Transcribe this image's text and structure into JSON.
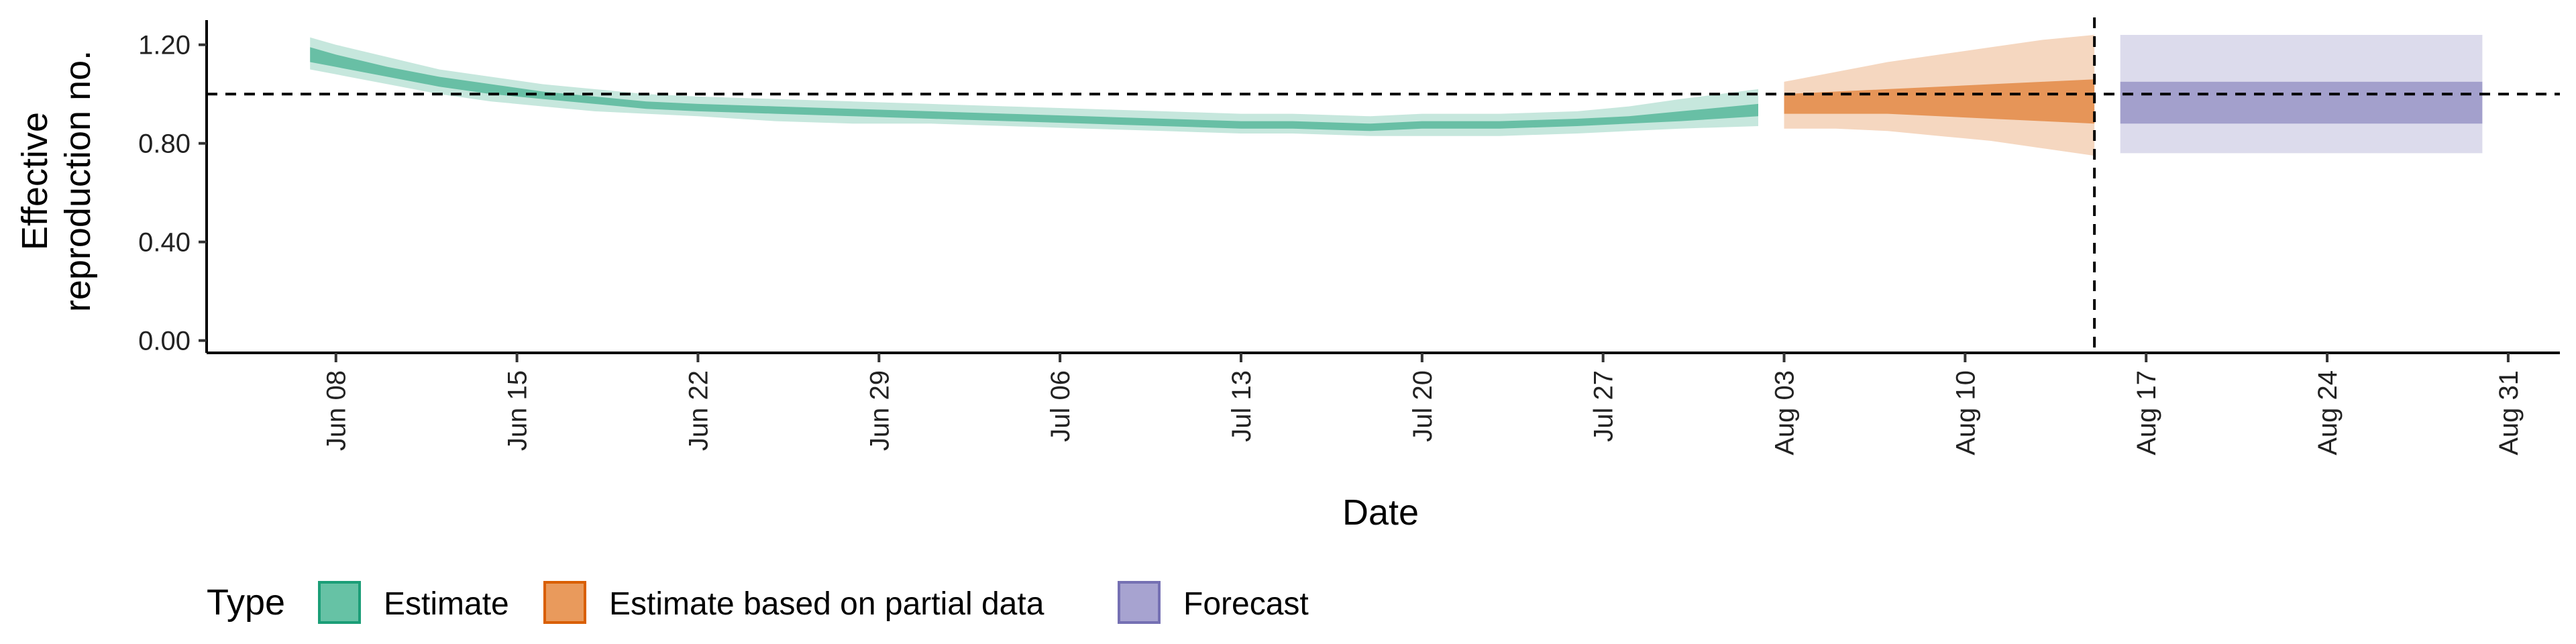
{
  "chart_data": {
    "type": "area",
    "xlabel": "Date",
    "ylabel_lines": [
      "Effective",
      "reproduction no."
    ],
    "x_domain": [
      "2020-06-03",
      "2020-09-02"
    ],
    "ylim": [
      -0.05,
      1.3
    ],
    "y_ticks": [
      0.0,
      0.4,
      0.8,
      1.2
    ],
    "y_tick_labels": [
      "0.00",
      "0.40",
      "0.80",
      "1.20"
    ],
    "x_ticks": [
      "2020-06-08",
      "2020-06-15",
      "2020-06-22",
      "2020-06-29",
      "2020-07-06",
      "2020-07-13",
      "2020-07-20",
      "2020-07-27",
      "2020-08-03",
      "2020-08-10",
      "2020-08-17",
      "2020-08-24",
      "2020-08-31"
    ],
    "x_tick_labels": [
      "Jun 08",
      "Jun 15",
      "Jun 22",
      "Jun 29",
      "Jul 06",
      "Jul 13",
      "Jul 20",
      "Jul 27",
      "Aug 03",
      "Aug 10",
      "Aug 17",
      "Aug 24",
      "Aug 31"
    ],
    "hline_y": 1.0,
    "vline_x": "2020-08-15",
    "legend": {
      "title": "Type",
      "position": "bottom",
      "entries": [
        {
          "label": "Estimate",
          "fill": "#66c2a5",
          "stroke": "#1b9e77"
        },
        {
          "label": "Estimate based on partial data",
          "fill": "#e99a5c",
          "stroke": "#d95f02"
        },
        {
          "label": "Forecast",
          "fill": "#a7a3d0",
          "stroke": "#7570b3"
        }
      ]
    },
    "series": [
      {
        "name": "Estimate",
        "color": "#1b9e77",
        "x": [
          "2020-06-07",
          "2020-06-08",
          "2020-06-10",
          "2020-06-12",
          "2020-06-14",
          "2020-06-16",
          "2020-06-18",
          "2020-06-20",
          "2020-06-22",
          "2020-06-25",
          "2020-06-28",
          "2020-07-01",
          "2020-07-04",
          "2020-07-07",
          "2020-07-10",
          "2020-07-13",
          "2020-07-15",
          "2020-07-18",
          "2020-07-20",
          "2020-07-23",
          "2020-07-26",
          "2020-07-28",
          "2020-07-30",
          "2020-08-02"
        ],
        "outer_lower": [
          1.1,
          1.08,
          1.04,
          1.0,
          0.97,
          0.95,
          0.93,
          0.92,
          0.91,
          0.89,
          0.88,
          0.88,
          0.87,
          0.86,
          0.85,
          0.84,
          0.84,
          0.83,
          0.83,
          0.83,
          0.84,
          0.85,
          0.86,
          0.87
        ],
        "inner_lower": [
          1.13,
          1.11,
          1.07,
          1.03,
          1.0,
          0.98,
          0.96,
          0.94,
          0.93,
          0.92,
          0.91,
          0.9,
          0.89,
          0.88,
          0.87,
          0.86,
          0.86,
          0.85,
          0.86,
          0.86,
          0.87,
          0.88,
          0.89,
          0.91
        ],
        "inner_upper": [
          1.19,
          1.16,
          1.11,
          1.07,
          1.04,
          1.01,
          0.99,
          0.97,
          0.96,
          0.95,
          0.94,
          0.93,
          0.92,
          0.91,
          0.9,
          0.89,
          0.89,
          0.88,
          0.89,
          0.89,
          0.9,
          0.91,
          0.93,
          0.96
        ],
        "outer_upper": [
          1.23,
          1.2,
          1.15,
          1.1,
          1.07,
          1.04,
          1.02,
          1.0,
          0.99,
          0.98,
          0.97,
          0.96,
          0.95,
          0.94,
          0.93,
          0.92,
          0.92,
          0.91,
          0.92,
          0.92,
          0.93,
          0.95,
          0.98,
          1.02
        ]
      },
      {
        "name": "Estimate based on partial data",
        "color": "#d95f02",
        "x": [
          "2020-08-03",
          "2020-08-05",
          "2020-08-07",
          "2020-08-09",
          "2020-08-11",
          "2020-08-13",
          "2020-08-15"
        ],
        "outer_lower": [
          0.86,
          0.86,
          0.85,
          0.83,
          0.81,
          0.78,
          0.75
        ],
        "inner_lower": [
          0.92,
          0.92,
          0.92,
          0.91,
          0.9,
          0.89,
          0.88
        ],
        "inner_upper": [
          1.0,
          1.01,
          1.02,
          1.03,
          1.04,
          1.05,
          1.06
        ],
        "outer_upper": [
          1.05,
          1.09,
          1.13,
          1.16,
          1.19,
          1.22,
          1.24
        ]
      },
      {
        "name": "Forecast",
        "color": "#7570b3",
        "x": [
          "2020-08-16",
          "2020-08-30"
        ],
        "outer_lower": [
          0.76,
          0.76
        ],
        "inner_lower": [
          0.88,
          0.88
        ],
        "inner_upper": [
          1.05,
          1.05
        ],
        "outer_upper": [
          1.24,
          1.24
        ]
      }
    ]
  }
}
